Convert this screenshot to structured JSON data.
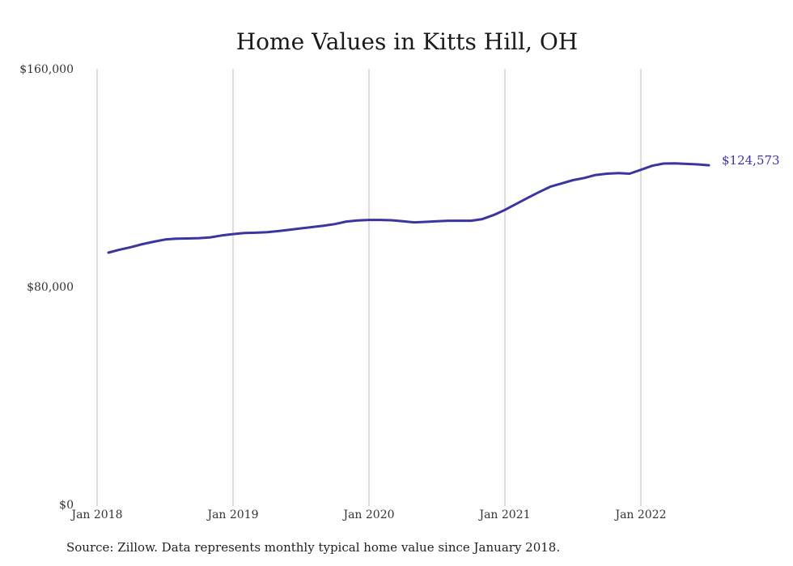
{
  "chart_data": {
    "type": "line",
    "title": "Home Values in Kitts Hill, OH",
    "xlabel": "",
    "ylabel": "",
    "ylim": [
      0,
      160000
    ],
    "y_ticks": [
      {
        "value": 0,
        "label": "$0"
      },
      {
        "value": 80000,
        "label": "$80,000"
      },
      {
        "value": 160000,
        "label": "$160,000"
      }
    ],
    "x_ticks": [
      {
        "value": "2018-01",
        "label": "Jan 2018"
      },
      {
        "value": "2019-01",
        "label": "Jan 2019"
      },
      {
        "value": "2020-01",
        "label": "Jan 2020"
      },
      {
        "value": "2021-01",
        "label": "Jan 2021"
      },
      {
        "value": "2022-01",
        "label": "Jan 2022"
      }
    ],
    "grid": "vertical",
    "line_color": "#3b35a0",
    "end_label": "$124,573",
    "series": [
      {
        "x": [
          "2018-02",
          "2018-03",
          "2018-04",
          "2018-05",
          "2018-06",
          "2018-07",
          "2018-08",
          "2018-09",
          "2018-10",
          "2018-11",
          "2018-12",
          "2019-01",
          "2019-02",
          "2019-03",
          "2019-04",
          "2019-05",
          "2019-06",
          "2019-07",
          "2019-08",
          "2019-09",
          "2019-10",
          "2019-11",
          "2019-12",
          "2020-01",
          "2020-02",
          "2020-03",
          "2020-04",
          "2020-05",
          "2020-06",
          "2020-07",
          "2020-08",
          "2020-09",
          "2020-10",
          "2020-11",
          "2020-12",
          "2021-01",
          "2021-02",
          "2021-03",
          "2021-04",
          "2021-05",
          "2021-06",
          "2021-07",
          "2021-08",
          "2021-09",
          "2021-10",
          "2021-11",
          "2021-12",
          "2022-01",
          "2022-02",
          "2022-03",
          "2022-04",
          "2022-05",
          "2022-06",
          "2022-07"
        ],
        "values": [
          92500,
          93600,
          94500,
          95600,
          96500,
          97300,
          97600,
          97700,
          97800,
          98100,
          98800,
          99300,
          99700,
          99800,
          100000,
          100400,
          100900,
          101400,
          101900,
          102400,
          103000,
          103900,
          104300,
          104500,
          104500,
          104400,
          104000,
          103600,
          103800,
          104000,
          104200,
          104200,
          104200,
          104800,
          106300,
          108200,
          110400,
          112600,
          114700,
          116700,
          117900,
          119100,
          119900,
          121000,
          121500,
          121700,
          121500,
          122900,
          124400,
          125200,
          125300,
          125100,
          124900,
          124573
        ]
      }
    ]
  },
  "footer": {
    "source": "Source: Zillow. Data represents monthly typical home value since January 2018."
  }
}
